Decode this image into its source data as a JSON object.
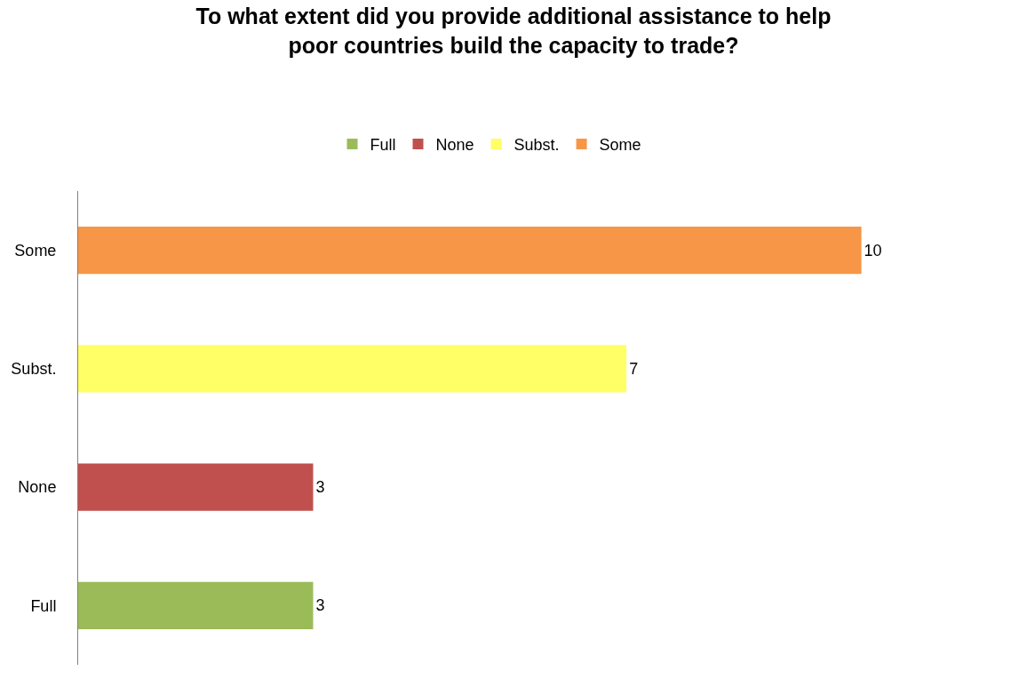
{
  "chart_data": {
    "type": "bar",
    "orientation": "horizontal",
    "title": "To what extent did you provide additional assistance to help\npoor countries build the capacity to trade?",
    "categories": [
      "Some",
      "Subst.",
      "None",
      "Full"
    ],
    "series": [
      {
        "name": "Full",
        "color": "#9bbb59",
        "values": [
          null,
          null,
          null,
          3
        ]
      },
      {
        "name": "None",
        "color": "#c0504d",
        "values": [
          null,
          null,
          3,
          null
        ]
      },
      {
        "name": "Subst.",
        "color": "#ffff66",
        "values": [
          null,
          7,
          null,
          null
        ]
      },
      {
        "name": "Some",
        "color": "#f79646",
        "values": [
          10,
          null,
          null,
          null
        ]
      }
    ],
    "data_labels": true,
    "legend": "top",
    "tick_labels": "y"
  }
}
